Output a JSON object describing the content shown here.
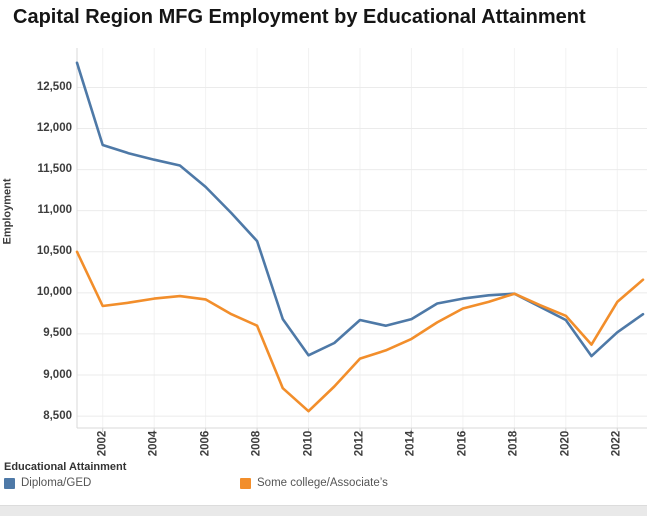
{
  "chart_data": {
    "type": "line",
    "title": "Capital Region MFG Employment by Educational Attainment",
    "ylabel": "Employment",
    "xlabel": "",
    "x": [
      2001,
      2002,
      2003,
      2004,
      2005,
      2006,
      2007,
      2008,
      2009,
      2010,
      2011,
      2012,
      2013,
      2014,
      2015,
      2016,
      2017,
      2018,
      2019,
      2020,
      2021,
      2022,
      2023
    ],
    "series": [
      {
        "name": "Diploma/GED",
        "color": "#4e79a7",
        "values": [
          12800,
          11800,
          11700,
          11620,
          11550,
          11290,
          10970,
          10630,
          9680,
          9240,
          9390,
          9670,
          9600,
          9680,
          9870,
          9930,
          9970,
          9990,
          9830,
          9670,
          9230,
          9520,
          9740
        ]
      },
      {
        "name": "Some college/Associate’s",
        "color": "#f28e2b",
        "values": [
          10500,
          9840,
          9880,
          9930,
          9960,
          9920,
          9740,
          9600,
          8840,
          8560,
          8860,
          9200,
          9300,
          9440,
          9640,
          9810,
          9890,
          9990,
          9850,
          9720,
          9370,
          9890,
          10160
        ]
      }
    ],
    "y_ticks": [
      {
        "value": 8500,
        "label": "8,500"
      },
      {
        "value": 9000,
        "label": "9,000"
      },
      {
        "value": 9500,
        "label": "9,500"
      },
      {
        "value": 10000,
        "label": "10,000"
      },
      {
        "value": 10500,
        "label": "10,500"
      },
      {
        "value": 11000,
        "label": "11,000"
      },
      {
        "value": 11500,
        "label": "11,500"
      },
      {
        "value": 12000,
        "label": "12,000"
      },
      {
        "value": 12500,
        "label": "12,500"
      }
    ],
    "x_ticks": [
      {
        "value": 2002,
        "label": "2002"
      },
      {
        "value": 2004,
        "label": "2004"
      },
      {
        "value": 2006,
        "label": "2006"
      },
      {
        "value": 2008,
        "label": "2008"
      },
      {
        "value": 2010,
        "label": "2010"
      },
      {
        "value": 2012,
        "label": "2012"
      },
      {
        "value": 2014,
        "label": "2014"
      },
      {
        "value": 2016,
        "label": "2016"
      },
      {
        "value": 2018,
        "label": "2018"
      },
      {
        "value": 2020,
        "label": "2020"
      },
      {
        "value": 2022,
        "label": "2022"
      }
    ],
    "xlim": [
      2001,
      2023
    ],
    "ylim": [
      8355,
      12980
    ],
    "grid": true,
    "legend": {
      "title": "Educational Attainment",
      "position": "bottom-left",
      "items": [
        {
          "label": "Diploma/GED",
          "color": "#4e79a7"
        },
        {
          "label": "Some college/Associate’s",
          "color": "#f28e2b"
        }
      ]
    },
    "colors": {
      "grid_horizontal": "#ebebeb",
      "grid_vertical": "#f2f2f2",
      "axis_line": "#d9d9d9",
      "tick_mark": "#cccccc"
    }
  }
}
